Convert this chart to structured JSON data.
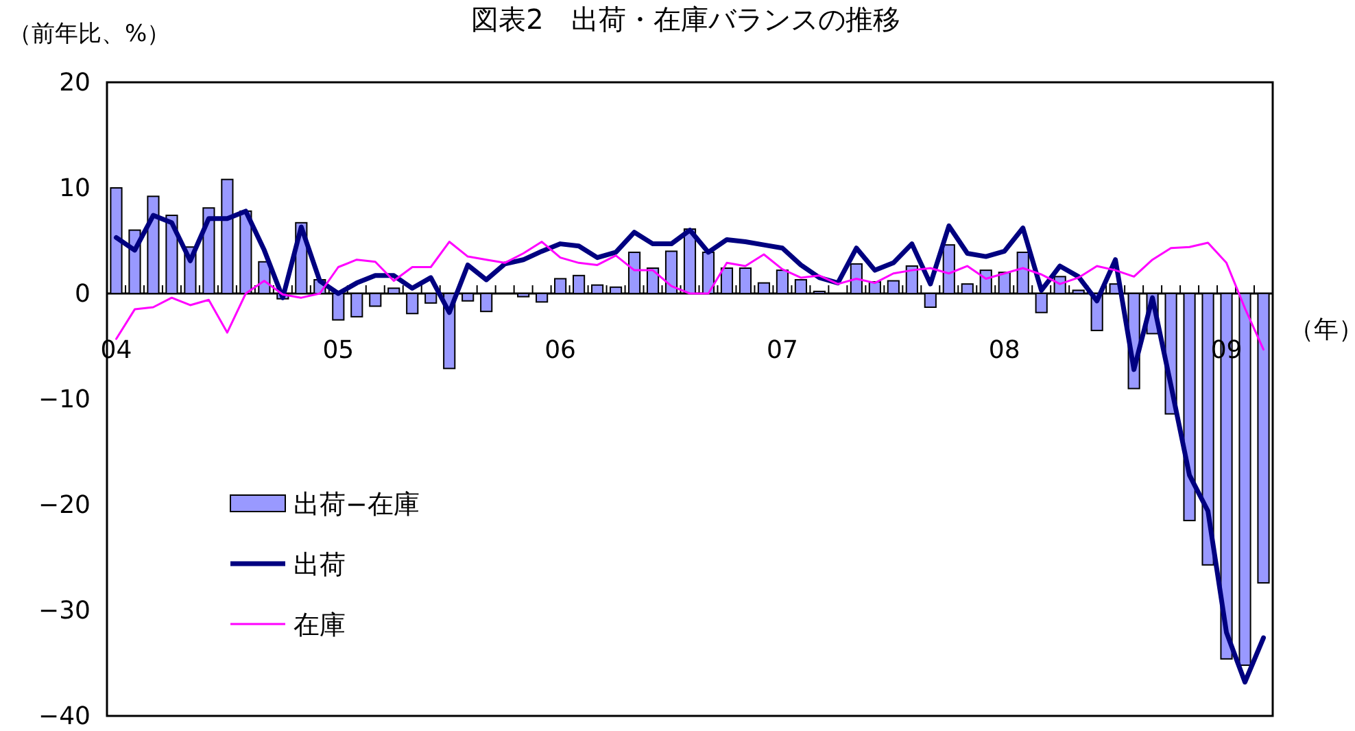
{
  "chart_data": {
    "type": "bar",
    "title": "図表2　出荷・在庫バランスの推移",
    "ylabel": "（前年比、%）",
    "xlabel": "（年）",
    "categories": [
      "04",
      null,
      null,
      null,
      null,
      null,
      null,
      null,
      null,
      null,
      null,
      null,
      "05",
      null,
      null,
      null,
      null,
      null,
      null,
      null,
      null,
      null,
      null,
      null,
      "06",
      null,
      null,
      null,
      null,
      null,
      null,
      null,
      null,
      null,
      null,
      null,
      "07",
      null,
      null,
      null,
      null,
      null,
      null,
      null,
      null,
      null,
      null,
      null,
      "08",
      null,
      null,
      null,
      null,
      null,
      null,
      null,
      null,
      null,
      null,
      null,
      "09",
      null,
      null
    ],
    "ylim": [
      -40,
      20
    ],
    "yticks": [
      {
        "value": -40,
        "label": "−40"
      },
      {
        "value": -30,
        "label": "−30"
      },
      {
        "value": -20,
        "label": "−20"
      },
      {
        "value": -10,
        "label": "−10"
      },
      0,
      10,
      20
    ],
    "grid": false,
    "legend": "bottom left",
    "series": [
      {
        "name": "出荷−在庫",
        "color": "#9999ff",
        "values": [
          10.0,
          6.0,
          9.2,
          7.4,
          4.4,
          8.1,
          10.8,
          7.8,
          3.0,
          -0.5,
          6.7,
          1.3,
          -2.5,
          -2.2,
          -1.2,
          0.5,
          -1.9,
          -0.9,
          -7.1,
          -0.7,
          -1.7,
          0,
          -0.3,
          -0.8,
          1.4,
          1.7,
          0.8,
          0.6,
          3.9,
          2.4,
          4.0,
          6.1,
          3.9,
          2.4,
          2.4,
          1.0,
          2.2,
          1.3,
          0.2,
          0,
          2.8,
          1.1,
          1.2,
          2.6,
          -1.3,
          4.6,
          0.9,
          2.2,
          2.0,
          3.9,
          -1.8,
          1.6,
          0.3,
          -3.5,
          0.9,
          -9.0,
          -3.8,
          -11.4,
          -21.5,
          -25.7,
          -34.6,
          -35.2,
          -27.4
        ]
      },
      {
        "name": "出荷",
        "type": "line",
        "color": "#000080",
        "values": [
          5.3,
          4.1,
          7.4,
          6.7,
          3.1,
          7.1,
          7.1,
          7.8,
          4.1,
          -0.4,
          6.3,
          1.2,
          0,
          1.0,
          1.7,
          1.7,
          0.5,
          1.5,
          -1.8,
          2.7,
          1.3,
          2.8,
          3.2,
          4.0,
          4.7,
          4.5,
          3.4,
          3.9,
          5.8,
          4.7,
          4.7,
          6.0,
          3.9,
          5.1,
          4.9,
          4.6,
          4.3,
          2.7,
          1.5,
          1.0,
          4.3,
          2.2,
          2.9,
          4.7,
          0.9,
          6.4,
          3.8,
          3.5,
          4.0,
          6.2,
          0.3,
          2.6,
          1.6,
          -0.7,
          3.2,
          -7.2,
          -0.4,
          -8.7,
          -17.2,
          -20.6,
          -32.1,
          -36.8,
          -32.6
        ]
      },
      {
        "name": "在庫",
        "type": "line",
        "color": "#ff00ff",
        "values": [
          -4.3,
          -1.5,
          -1.3,
          -0.4,
          -1.1,
          -0.6,
          -3.7,
          0,
          1.2,
          -0.1,
          -0.4,
          0,
          2.5,
          3.2,
          3.0,
          1.2,
          2.5,
          2.5,
          4.9,
          3.5,
          3.2,
          2.9,
          3.8,
          4.9,
          3.4,
          2.9,
          2.7,
          3.6,
          2.2,
          2.2,
          0.7,
          0,
          0,
          2.9,
          2.6,
          3.7,
          2.3,
          1.5,
          1.7,
          0.9,
          1.4,
          1.0,
          1.9,
          2.2,
          2.4,
          1.9,
          2.6,
          1.4,
          1.9,
          2.4,
          1.8,
          0.9,
          1.5,
          2.6,
          2.2,
          1.6,
          3.2,
          4.3,
          4.4,
          4.8,
          2.9,
          -1.4,
          -5.3
        ]
      }
    ]
  }
}
